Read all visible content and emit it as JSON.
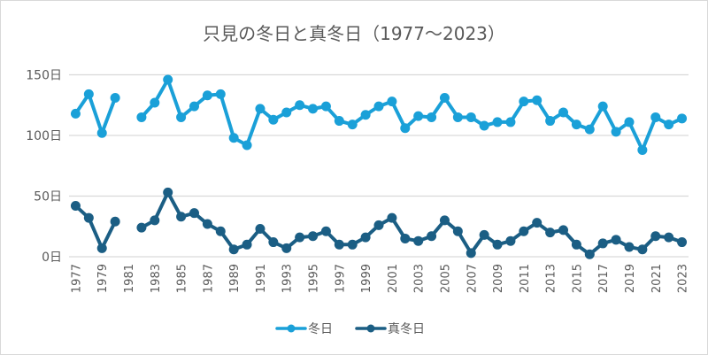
{
  "chart_data": {
    "type": "line",
    "title": "只見の冬日と真冬日（1977～2023）",
    "xlabel": "",
    "ylabel": "",
    "ylim": [
      0,
      150
    ],
    "yticks": [
      0,
      50,
      100,
      150
    ],
    "ytick_labels": [
      "0日",
      "50日",
      "100日",
      "150日"
    ],
    "grid": true,
    "legend_position": "bottom",
    "x": [
      1977,
      1978,
      1979,
      1980,
      1981,
      1982,
      1983,
      1984,
      1985,
      1986,
      1987,
      1988,
      1989,
      1990,
      1991,
      1992,
      1993,
      1994,
      1995,
      1996,
      1997,
      1998,
      1999,
      2000,
      2001,
      2002,
      2003,
      2004,
      2005,
      2006,
      2007,
      2008,
      2009,
      2010,
      2011,
      2012,
      2013,
      2014,
      2015,
      2016,
      2017,
      2018,
      2019,
      2020,
      2021,
      2022,
      2023
    ],
    "xtick_labels": [
      "1977",
      "1979",
      "1981",
      "1983",
      "1985",
      "1987",
      "1989",
      "1991",
      "1993",
      "1995",
      "1997",
      "1999",
      "2001",
      "2003",
      "2005",
      "2007",
      "2009",
      "2011",
      "2013",
      "2015",
      "2017",
      "2019",
      "2021",
      "2023"
    ],
    "series": [
      {
        "name": "冬日",
        "color": "#1aa0d8",
        "values": [
          118,
          134,
          102,
          131,
          null,
          115,
          127,
          146,
          115,
          124,
          133,
          134,
          98,
          92,
          122,
          113,
          119,
          125,
          122,
          124,
          112,
          109,
          117,
          124,
          128,
          106,
          116,
          115,
          131,
          115,
          115,
          108,
          111,
          111,
          128,
          129,
          112,
          119,
          109,
          105,
          124,
          103,
          111,
          88,
          115,
          109,
          114
        ]
      },
      {
        "name": "真冬日",
        "color": "#1b5e84",
        "values": [
          42,
          32,
          7,
          29,
          null,
          24,
          30,
          53,
          33,
          36,
          27,
          21,
          6,
          10,
          23,
          12,
          7,
          16,
          17,
          21,
          10,
          10,
          16,
          26,
          32,
          15,
          13,
          17,
          30,
          21,
          3,
          18,
          10,
          13,
          21,
          28,
          20,
          22,
          10,
          2,
          11,
          14,
          8,
          6,
          17,
          16,
          12
        ]
      }
    ]
  },
  "legend": {
    "items": [
      "冬日",
      "真冬日"
    ]
  }
}
